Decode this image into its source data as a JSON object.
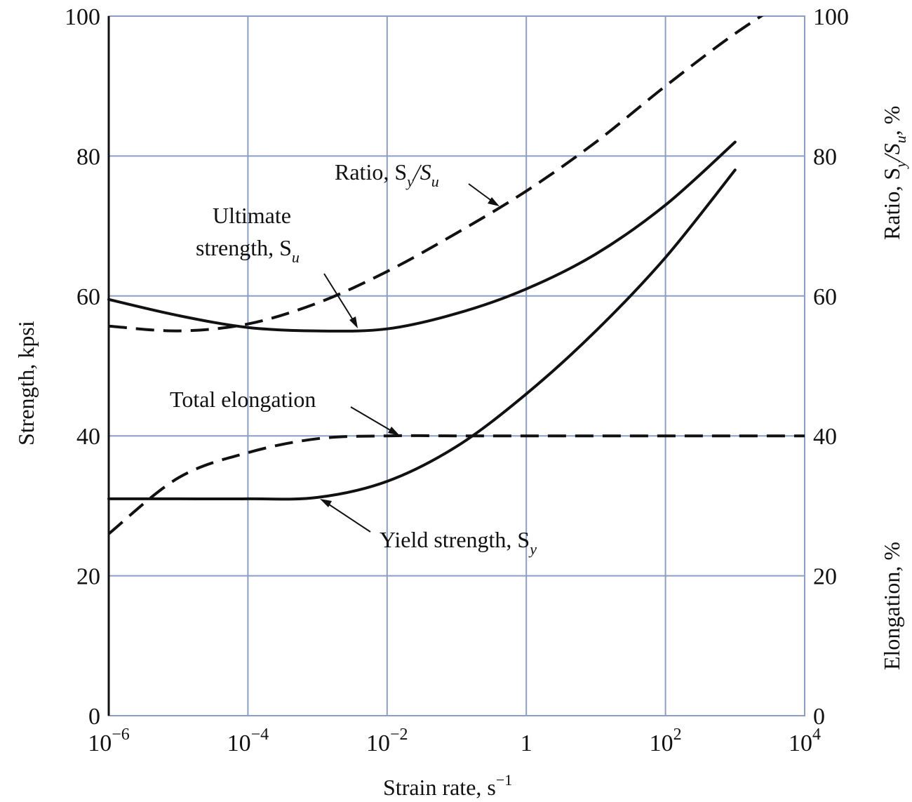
{
  "chart_data": {
    "type": "line",
    "xlabel": "Strain rate, s",
    "xlabel_exponent": "−1",
    "ylabel_left": "Strength, kpsi",
    "ylabel_right_top": "Ratio, S",
    "ylabel_right_top_parts": {
      "S1_sub": "y",
      "slash": "/S",
      "S2_sub": "u",
      "tail": ", %"
    },
    "ylabel_right_bottom": "Elongation, %",
    "x_scale": "log",
    "xlim": [
      1e-06,
      10000
    ],
    "ylim": [
      0,
      100
    ],
    "grid": true,
    "x_ticks": [
      {
        "base": "10",
        "exp": "−6",
        "value": 1e-06
      },
      {
        "base": "10",
        "exp": "−4",
        "value": 0.0001
      },
      {
        "base": "10",
        "exp": "−2",
        "value": 0.01
      },
      {
        "base": "1",
        "exp": "",
        "value": 1
      },
      {
        "base": "10",
        "exp": "2",
        "value": 100
      },
      {
        "base": "10",
        "exp": "4",
        "value": 10000
      }
    ],
    "y_ticks_left": [
      "0",
      "20",
      "40",
      "60",
      "80",
      "100"
    ],
    "y_ticks_right": [
      "0",
      "20",
      "40",
      "60",
      "80",
      "100"
    ],
    "series": [
      {
        "key": "ultimate",
        "style": "solid",
        "x": [
          1e-06,
          1e-05,
          0.0001,
          0.001,
          0.01,
          0.1,
          1,
          10,
          100,
          1000
        ],
        "y": [
          59.5,
          57.2,
          55.5,
          55,
          55.3,
          57.5,
          61,
          66,
          73,
          82
        ]
      },
      {
        "key": "yield",
        "style": "solid",
        "x": [
          1e-06,
          1e-05,
          0.0001,
          0.001,
          0.01,
          0.1,
          1,
          10,
          100,
          1000
        ],
        "y": [
          31,
          31,
          31,
          31.2,
          33.5,
          38.5,
          46,
          55,
          65.5,
          78
        ]
      },
      {
        "key": "ratio",
        "style": "dashed",
        "x": [
          1e-06,
          1e-05,
          0.0001,
          0.001,
          0.01,
          0.1,
          1,
          10,
          100,
          1000,
          10000
        ],
        "y": [
          55.7,
          55,
          56,
          59,
          63.5,
          69,
          75,
          82,
          90,
          97.5,
          104
        ]
      },
      {
        "key": "elongation",
        "style": "dashed",
        "x": [
          1e-06,
          1e-05,
          0.0001,
          0.001,
          0.01,
          0.1,
          1,
          10,
          100,
          1000,
          10000
        ],
        "y": [
          26,
          34,
          37.6,
          39.6,
          40,
          40,
          40,
          40,
          40,
          40,
          40
        ]
      }
    ],
    "annotations": {
      "ratio": {
        "text": "Ratio, S",
        "sub1": "y",
        "mid": "/S",
        "sub2": "u"
      },
      "ultimate_line1": "Ultimate",
      "ultimate_line2": {
        "text": "strength, S",
        "sub": "u"
      },
      "elongation": "Total elongation",
      "yield": {
        "text": "Yield strength, S",
        "sub": "y"
      }
    }
  }
}
